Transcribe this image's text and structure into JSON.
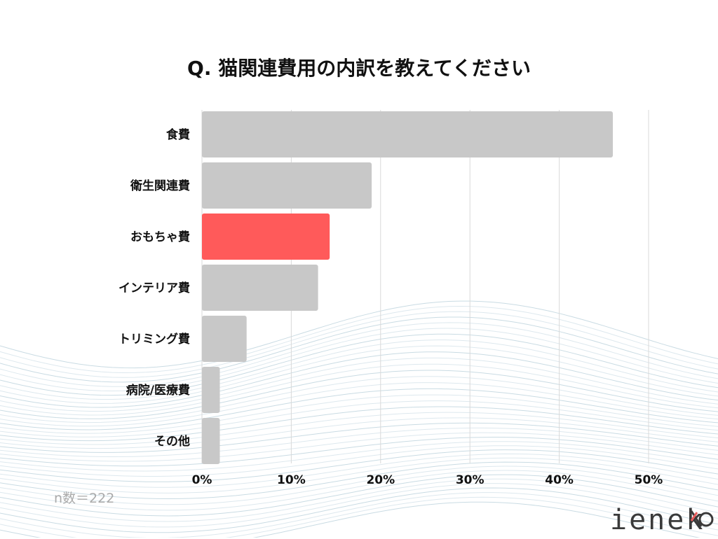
{
  "title": "Q. 猫関連費用の内訳を教えてください",
  "sample_size": "n数＝222",
  "logo": {
    "text": "ieneko",
    "accent_color": "#e85c5c"
  },
  "colors": {
    "bar_default": "#c8c8c8",
    "bar_highlight": "#ff5a5a",
    "grid": "#d9d9d9"
  },
  "chart_data": {
    "type": "bar",
    "orientation": "horizontal",
    "categories": [
      "食費",
      "衛生関連費",
      "おもちゃ費",
      "インテリア費",
      "トリミング費",
      "病院/医療費",
      "その他"
    ],
    "values": [
      46,
      19,
      14.3,
      13,
      5,
      2,
      2
    ],
    "highlight_index": 2,
    "xlim": [
      0,
      50
    ],
    "x_ticks": [
      "0%",
      "10%",
      "20%",
      "30%",
      "40%",
      "50%"
    ],
    "grid": true,
    "xlabel": "",
    "ylabel": ""
  }
}
